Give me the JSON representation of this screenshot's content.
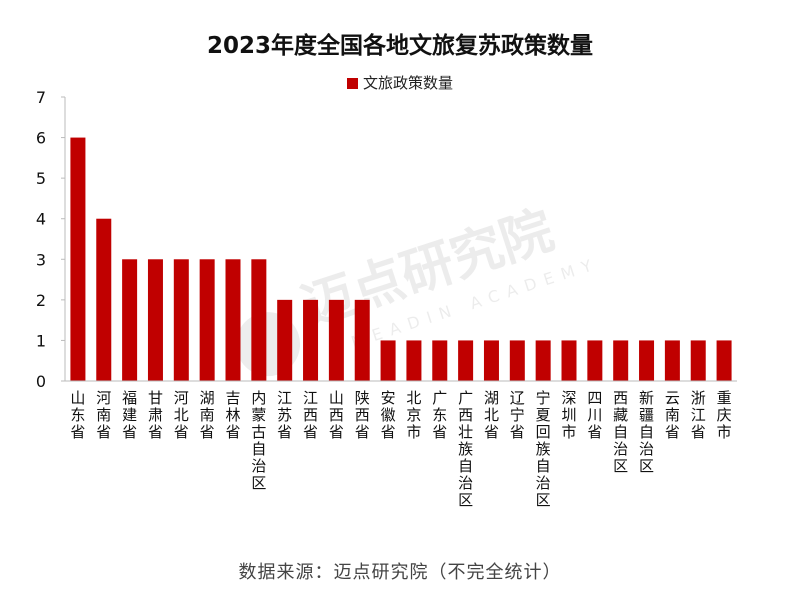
{
  "chart_data": {
    "type": "bar",
    "title": "2023年度全国各地文旅复苏政策数量",
    "legend": [
      "文旅政策数量"
    ],
    "legend_position": "top",
    "categories": [
      "山东省",
      "河南省",
      "福建省",
      "甘肃省",
      "河北省",
      "湖南省",
      "吉林省",
      "内蒙古自治区",
      "江苏省",
      "江西省",
      "山西省",
      "陕西省",
      "安徽省",
      "北京市",
      "广东省",
      "广西壮族自治区",
      "湖北省",
      "辽宁省",
      "宁夏回族自治区",
      "深圳市",
      "四川省",
      "西藏自治区",
      "新疆自治区",
      "云南省",
      "浙江省",
      "重庆市"
    ],
    "series": [
      {
        "name": "文旅政策数量",
        "values": [
          6,
          4,
          3,
          3,
          3,
          3,
          3,
          3,
          2,
          2,
          2,
          2,
          1,
          1,
          1,
          1,
          1,
          1,
          1,
          1,
          1,
          1,
          1,
          1,
          1,
          1
        ],
        "color": "#c00000"
      }
    ],
    "ylim": [
      0,
      7
    ],
    "yticks": [
      0,
      1,
      2,
      3,
      4,
      5,
      6,
      7
    ],
    "xlabel": "",
    "ylabel": "",
    "grid": false
  },
  "watermark": "迈点研究院 MEADIN ACADEMY",
  "source": "数据来源：迈点研究院（不完全统计）"
}
